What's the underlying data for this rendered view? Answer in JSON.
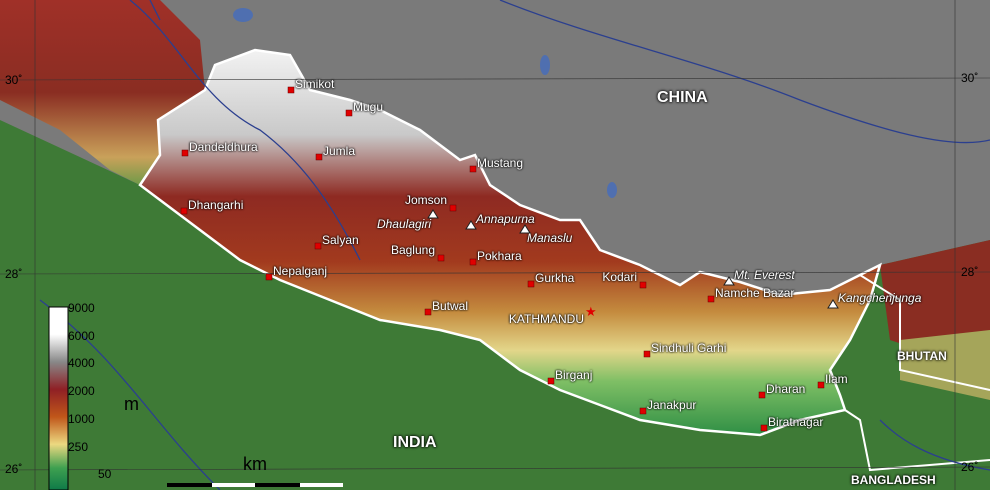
{
  "countries": {
    "china": "CHINA",
    "india": "INDIA",
    "bhutan": "BHUTAN",
    "bangladesh": "BANGLADESH"
  },
  "latitudes": [
    "30˚",
    "28˚",
    "26˚"
  ],
  "cities": [
    {
      "name": "Simikot"
    },
    {
      "name": "Mugu"
    },
    {
      "name": "Dandeldhura"
    },
    {
      "name": "Jumla"
    },
    {
      "name": "Dhangarhi"
    },
    {
      "name": "Mustang"
    },
    {
      "name": "Jomson"
    },
    {
      "name": "Salyan"
    },
    {
      "name": "Nepalganj"
    },
    {
      "name": "Baglung"
    },
    {
      "name": "Pokhara"
    },
    {
      "name": "Gurkha"
    },
    {
      "name": "Kodari"
    },
    {
      "name": "Butwal"
    },
    {
      "name": "KATHMANDU",
      "capital": true
    },
    {
      "name": "Namche Bazar"
    },
    {
      "name": "Sindhuli Garhi"
    },
    {
      "name": "Birganj"
    },
    {
      "name": "Dharan"
    },
    {
      "name": "Ilam"
    },
    {
      "name": "Janakpur"
    },
    {
      "name": "Biratnagar"
    }
  ],
  "peaks": [
    "Dhaulagiri",
    "Annapurna",
    "Manaslu",
    "Mt. Everest",
    "Kangchenjunga"
  ],
  "legend": {
    "unit": "m",
    "ticks": [
      "9000",
      "6000",
      "4000",
      "2000",
      "1000",
      "250",
      "50"
    ]
  },
  "scale": {
    "unit": "km"
  },
  "colors": {
    "border": "#ffffff",
    "city": "#e00000",
    "river": "#2b3f8f",
    "lake": "#4f6fb0"
  }
}
